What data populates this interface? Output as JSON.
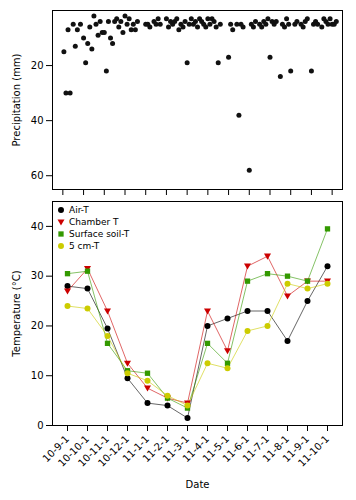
{
  "chart_data": [
    {
      "type": "scatter",
      "x": [
        0.05,
        0.15,
        0.25,
        0.35,
        0.5,
        0.6,
        0.7,
        0.85,
        1.0,
        1.1,
        1.2,
        1.3,
        1.4,
        1.5,
        1.6,
        1.7,
        1.8,
        1.9,
        2.0,
        2.1,
        2.2,
        2.3,
        2.4,
        2.5,
        2.6,
        2.7,
        2.8,
        2.9,
        3.0,
        3.1,
        3.2,
        3.3,
        3.4,
        3.5,
        3.6,
        4.0,
        4.1,
        4.2,
        4.4,
        4.5,
        4.6,
        4.7,
        5.0,
        5.1,
        5.2,
        5.3,
        5.4,
        5.5,
        5.6,
        5.7,
        5.8,
        5.9,
        6.0,
        6.1,
        6.2,
        6.3,
        6.4,
        6.5,
        6.6,
        6.7,
        6.8,
        6.9,
        7.0,
        7.1,
        7.2,
        7.3,
        7.4,
        7.5,
        7.6,
        8.0,
        8.1,
        8.2,
        8.4,
        8.5,
        8.6,
        8.7,
        9.0,
        9.1,
        9.2,
        9.3,
        9.5,
        9.6,
        9.7,
        9.8,
        9.9,
        10.0,
        10.1,
        10.2,
        10.3,
        10.5,
        10.6,
        10.7,
        10.8,
        10.9,
        11.0,
        11.2,
        11.3,
        11.5,
        11.6,
        11.7,
        11.8,
        12.0,
        12.1,
        12.2,
        12.3,
        12.5,
        12.6,
        12.7,
        12.8,
        12.9,
        13.0,
        13.1,
        13.2
      ],
      "values": [
        15,
        30,
        7,
        30,
        5,
        13,
        7,
        5,
        10,
        19,
        12,
        6,
        14,
        2,
        5,
        9,
        4,
        8,
        8,
        22,
        4,
        10,
        12,
        4,
        3,
        6,
        4,
        8,
        2,
        5,
        3,
        7,
        5,
        7,
        4,
        5,
        5,
        6,
        4,
        5,
        3,
        5,
        3,
        6,
        4,
        5,
        4,
        3,
        7,
        5,
        6,
        4,
        19,
        5,
        3,
        5,
        4,
        6,
        3,
        4,
        5,
        6,
        3,
        5,
        3,
        4,
        6,
        19,
        5,
        17,
        5,
        7,
        5,
        38,
        5,
        6,
        58,
        5,
        6,
        4,
        5,
        6,
        4,
        5,
        3,
        17,
        4,
        5,
        4,
        24,
        5,
        6,
        3,
        5,
        22,
        5,
        4,
        5,
        6,
        4,
        3,
        22,
        5,
        4,
        5,
        6,
        3,
        4,
        5,
        3,
        5,
        5,
        4
      ],
      "color": "#111111",
      "xlim": [
        -0.5,
        13.5
      ],
      "xticks": [
        0,
        1,
        2,
        3,
        4,
        5,
        6,
        7,
        8,
        9,
        10,
        11,
        12,
        13
      ],
      "ylim": [
        65,
        0
      ],
      "yticks": [
        20,
        40,
        60
      ],
      "ylabel": "Precipitation (mm)",
      "tick_labels": "y"
    },
    {
      "type": "line",
      "categories": [
        "10-9-1",
        "10-10-1",
        "10-11-1",
        "10-12-1",
        "11-1-1",
        "11-2-1",
        "11-3-1",
        "11-4-1",
        "11-5-1",
        "11-6-1",
        "11-7-1",
        "11-8-1",
        "11-9-1",
        "11-10-1"
      ],
      "series": [
        {
          "name": "Air-T",
          "color": "#000000",
          "marker": "circle",
          "values": [
            28,
            27.5,
            19.5,
            9.5,
            4.5,
            4,
            1.5,
            20,
            21.5,
            23,
            23,
            17,
            25,
            32
          ]
        },
        {
          "name": "Chamber T",
          "color": "#cc0000",
          "marker": "triangle-down",
          "values": [
            27,
            31.5,
            23,
            12.5,
            7.5,
            5.5,
            4.5,
            23,
            15,
            32,
            34,
            26,
            29,
            29
          ]
        },
        {
          "name": "Surface soil-T",
          "color": "#339900",
          "marker": "square",
          "values": [
            30.5,
            31,
            16.5,
            11,
            10.5,
            5.5,
            3.5,
            16.5,
            12.5,
            29,
            30.5,
            30,
            29,
            39.5
          ]
        },
        {
          "name": "5 cm-T",
          "color": "#cccc00",
          "marker": "circle",
          "values": [
            24,
            23.5,
            18,
            10.5,
            9,
            6,
            4,
            12.5,
            11.5,
            19,
            20,
            28.5,
            27.5,
            28.5
          ]
        }
      ],
      "ylim": [
        0,
        45
      ],
      "yticks": [
        0,
        10,
        20,
        30,
        40
      ],
      "xlabel": "Date",
      "ylabel": "Temperature (°C)",
      "legend": "upper left"
    }
  ]
}
